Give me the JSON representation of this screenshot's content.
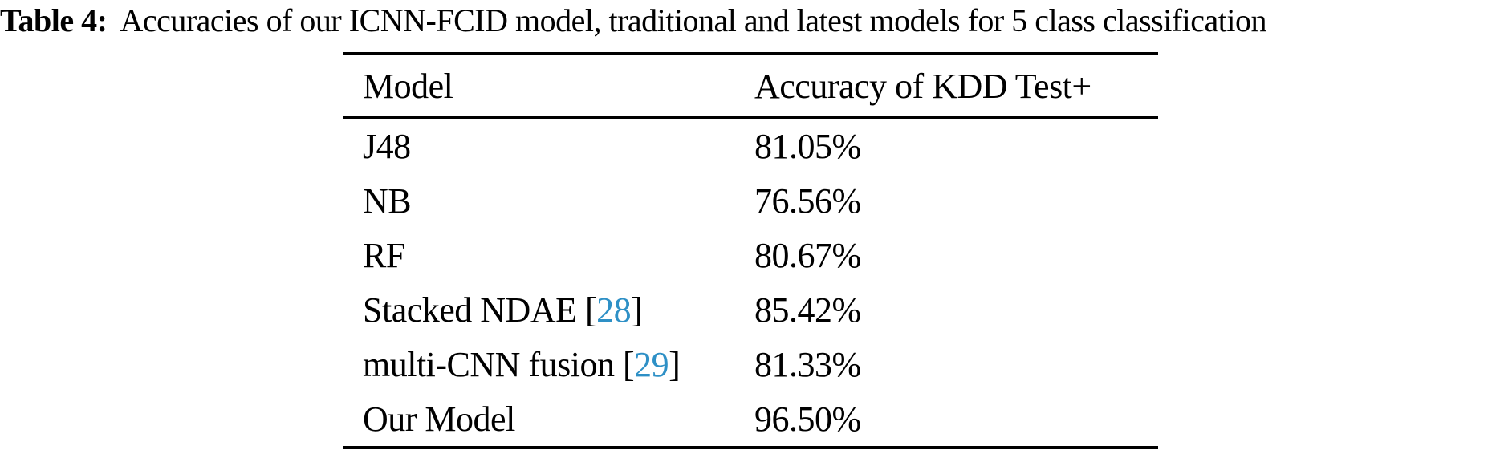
{
  "caption": {
    "label": "Table 4:",
    "text": "Accuracies of our ICNN-FCID model, traditional and latest models for 5 class classification"
  },
  "table": {
    "headers": [
      "Model",
      "Accuracy of KDD Test+"
    ],
    "rows": [
      {
        "model": "J48",
        "citation": null,
        "accuracy": "81.05%"
      },
      {
        "model": "NB",
        "citation": null,
        "accuracy": "76.56%"
      },
      {
        "model": "RF",
        "citation": null,
        "accuracy": "80.67%"
      },
      {
        "model": "Stacked NDAE",
        "citation": "28",
        "accuracy": "85.42%"
      },
      {
        "model": "multi-CNN fusion",
        "citation": "29",
        "accuracy": "81.33%"
      },
      {
        "model": "Our Model",
        "citation": null,
        "accuracy": "96.50%"
      }
    ]
  },
  "colors": {
    "text": "#000000",
    "background": "#ffffff",
    "rule": "#000000",
    "citation_link": "#2e90c6"
  }
}
